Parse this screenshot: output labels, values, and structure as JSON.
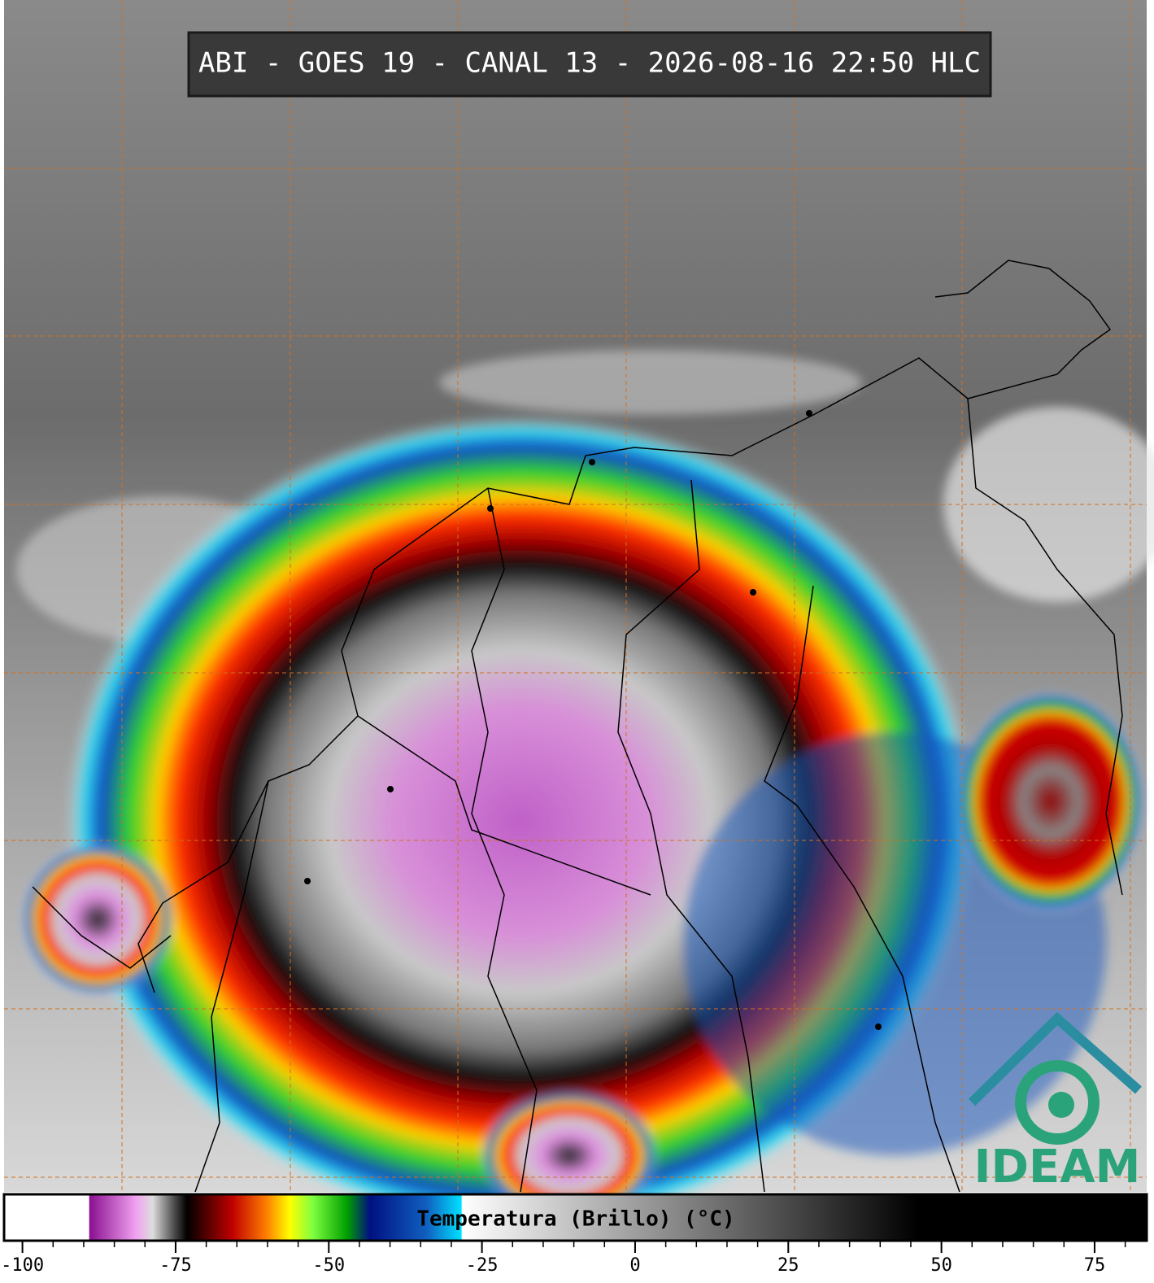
{
  "header": {
    "title": "ABI - GOES 19 - CANAL 13 - 2026-08-16 22:50 HLC"
  },
  "colorbar": {
    "label": "Temperatura (Brillo) (°C)",
    "range": [
      -103,
      83.5
    ],
    "ticks": [
      -100,
      -75,
      -50,
      -25,
      0,
      25,
      50,
      75
    ],
    "minor_tick_step": 5
  },
  "logo": {
    "text": "IDEAM"
  }
}
